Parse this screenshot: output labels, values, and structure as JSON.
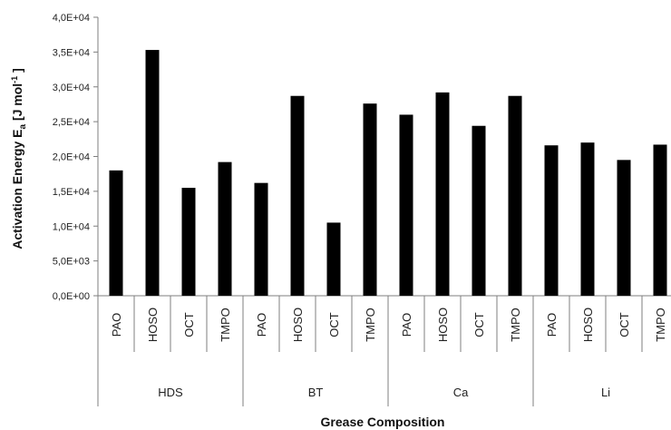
{
  "chart_data": {
    "type": "bar",
    "title": "",
    "xlabel": "Grease Composition",
    "ylabel_main": "Activation Energy E",
    "ylabel_sub": "a",
    "ylabel_unit": " [J mol",
    "ylabel_sup": "-1",
    "ylabel_close": " ]",
    "ylim": [
      0,
      40000
    ],
    "y_ticks": [
      {
        "value": 0,
        "label": "0,0E+00"
      },
      {
        "value": 5000,
        "label": "5,0E+03"
      },
      {
        "value": 10000,
        "label": "1,0E+04"
      },
      {
        "value": 15000,
        "label": "1,5E+04"
      },
      {
        "value": 20000,
        "label": "2,0E+04"
      },
      {
        "value": 25000,
        "label": "2,5E+04"
      },
      {
        "value": 30000,
        "label": "3,0E+04"
      },
      {
        "value": 35000,
        "label": "3,5E+04"
      },
      {
        "value": 40000,
        "label": "4,0E+04"
      }
    ],
    "grid": false,
    "legend": "none",
    "bar_color": "#000000",
    "groups": [
      {
        "name": "HDS",
        "categories": [
          "PAO",
          "HOSO",
          "OCT",
          "TMPO"
        ],
        "values": [
          18000,
          35300,
          15500,
          19200
        ]
      },
      {
        "name": "BT",
        "categories": [
          "PAO",
          "HOSO",
          "OCT",
          "TMPO"
        ],
        "values": [
          16200,
          28700,
          10500,
          27600
        ]
      },
      {
        "name": "Ca",
        "categories": [
          "PAO",
          "HOSO",
          "OCT",
          "TMPO"
        ],
        "values": [
          26000,
          29200,
          24400,
          28700
        ]
      },
      {
        "name": "Li",
        "categories": [
          "PAO",
          "HOSO",
          "OCT",
          "TMPO"
        ],
        "values": [
          21600,
          22000,
          19500,
          21700
        ]
      }
    ]
  }
}
